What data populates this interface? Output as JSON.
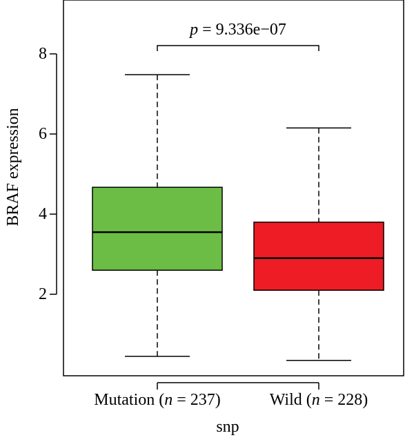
{
  "chart_data": {
    "type": "boxplot",
    "title": "",
    "xlabel": "snp",
    "ylabel": "BRAF expression",
    "ylim": [
      0,
      9
    ],
    "yticks": [
      2,
      4,
      6,
      8
    ],
    "annotation": {
      "p_symbol": "p",
      "p_text": " = 9.336e−07"
    },
    "groups": [
      {
        "category_name": "Mutation",
        "n_symbol": "n",
        "n_value": " = 237",
        "color": "#6cbd45",
        "whisker_low": 0.45,
        "q1": 2.6,
        "median": 3.55,
        "q3": 4.67,
        "whisker_high": 7.48
      },
      {
        "category_name": "Wild",
        "n_symbol": "n",
        "n_value": " = 228",
        "color": "#ee1c25",
        "whisker_low": 0.35,
        "q1": 2.1,
        "median": 2.9,
        "q3": 3.8,
        "whisker_high": 6.15
      }
    ]
  }
}
